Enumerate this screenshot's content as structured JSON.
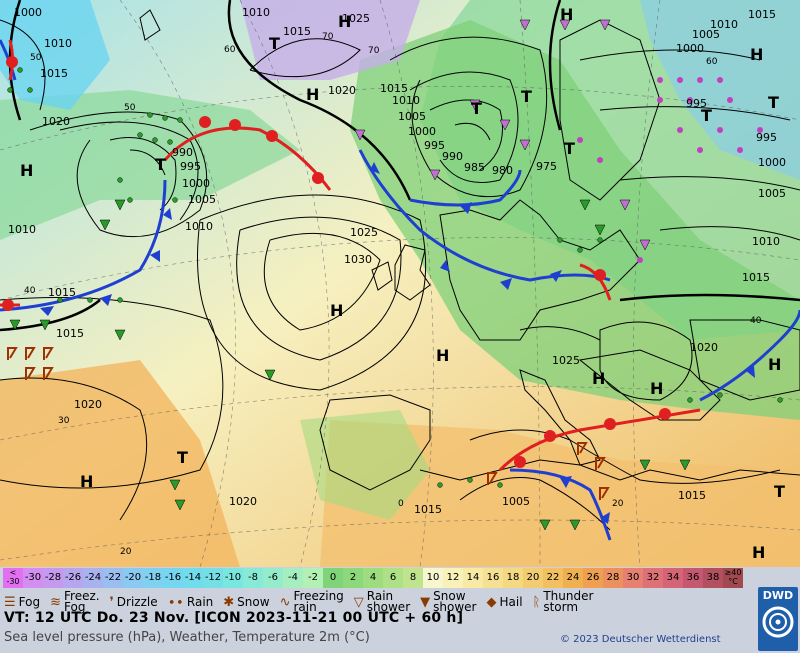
{
  "map": {
    "pressure_labels": [
      "1000",
      "1010",
      "1015",
      "1010",
      "1025",
      "1010",
      "1005",
      "1000",
      "995",
      "1015",
      "1010",
      "1005",
      "1000",
      "995",
      "990",
      "985",
      "980",
      "975",
      "1020",
      "1020",
      "1010",
      "1015",
      "1015",
      "1025",
      "1030",
      "1025",
      "1005",
      "1000",
      "995",
      "990",
      "1010",
      "1020",
      "1015",
      "1020",
      "1015",
      "1015",
      "1010",
      "1005",
      "1015",
      "1020",
      "1015",
      "1005",
      "995",
      "1000"
    ],
    "temp_labels": [
      "60",
      "70",
      "70",
      "60",
      "50",
      "40",
      "30",
      "20",
      "0",
      "20",
      "40",
      "50"
    ],
    "highs_lows": {
      "H": [
        "H",
        "H",
        "H",
        "H",
        "H",
        "H",
        "H",
        "H",
        "H",
        "H",
        "H",
        "H"
      ],
      "T": [
        "T",
        "T",
        "T",
        "T",
        "T",
        "T",
        "T",
        "T",
        "T"
      ]
    },
    "colors": {
      "ocean_cold": "#a6e0ea",
      "land_green": "#7fd07a",
      "warm": "#f2c070",
      "hot": "#f0a050",
      "front_cold": "#1f3fd0",
      "front_warm": "#e02020",
      "pressure_line": "#000000",
      "magenta": "#e070e0"
    }
  },
  "legend": {
    "scale": [
      {
        "label": "<\n-30",
        "color": "#e070f0"
      },
      {
        "label": "-30",
        "color": "#d38ef0"
      },
      {
        "label": "-28",
        "color": "#c59aee"
      },
      {
        "label": "-26",
        "color": "#b6a6ee"
      },
      {
        "label": "-24",
        "color": "#a8b2ee"
      },
      {
        "label": "-22",
        "color": "#9abef0"
      },
      {
        "label": "-20",
        "color": "#8acaf0"
      },
      {
        "label": "-18",
        "color": "#80d0f0"
      },
      {
        "label": "-16",
        "color": "#76d6f0"
      },
      {
        "label": "-14",
        "color": "#70dcec"
      },
      {
        "label": "-12",
        "color": "#74e0e6"
      },
      {
        "label": "-10",
        "color": "#7ae6e0"
      },
      {
        "label": "-8",
        "color": "#86ead6"
      },
      {
        "label": "-6",
        "color": "#94ecca"
      },
      {
        "label": "-4",
        "color": "#a4eebf"
      },
      {
        "label": "-2",
        "color": "#b2f0b6"
      },
      {
        "label": "0",
        "color": "#7fd47a"
      },
      {
        "label": "2",
        "color": "#8ed87c"
      },
      {
        "label": "4",
        "color": "#9edc80"
      },
      {
        "label": "6",
        "color": "#aee086"
      },
      {
        "label": "8",
        "color": "#c0e48e"
      },
      {
        "label": "10",
        "color": "#f6f6d0"
      },
      {
        "label": "12",
        "color": "#f8f2b8"
      },
      {
        "label": "14",
        "color": "#f8eaa4"
      },
      {
        "label": "16",
        "color": "#f6e092"
      },
      {
        "label": "18",
        "color": "#f4d882"
      },
      {
        "label": "20",
        "color": "#f2cc70"
      },
      {
        "label": "22",
        "color": "#f2c060"
      },
      {
        "label": "24",
        "color": "#f0b050"
      },
      {
        "label": "26",
        "color": "#eea050"
      },
      {
        "label": "28",
        "color": "#ec9060"
      },
      {
        "label": "30",
        "color": "#e68070"
      },
      {
        "label": "32",
        "color": "#de7078"
      },
      {
        "label": "34",
        "color": "#d46476"
      },
      {
        "label": "36",
        "color": "#c45870"
      },
      {
        "label": "38",
        "color": "#b25060"
      },
      {
        "label": "≥40\n°C",
        "color": "#a04a50"
      }
    ],
    "weather": [
      {
        "icon": "fog-icon",
        "label": "Fog"
      },
      {
        "icon": "freezing-fog-icon",
        "label": "Freez.\nFog"
      },
      {
        "icon": "drizzle-icon",
        "label": "Drizzle"
      },
      {
        "icon": "rain-icon",
        "label": "Rain"
      },
      {
        "icon": "snow-icon",
        "label": "Snow"
      },
      {
        "icon": "freezing-rain-icon",
        "label": "Freezing\nrain"
      },
      {
        "icon": "rain-shower-icon",
        "label": "Rain\nshower"
      },
      {
        "icon": "snow-shower-icon",
        "label": "Snow\nshower"
      },
      {
        "icon": "hail-icon",
        "label": "Hail"
      },
      {
        "icon": "thunderstorm-icon",
        "label": "Thunder\nstorm"
      }
    ],
    "valid_time": "VT: 12 UTC Do.  23 Nov. [ICON 2023-11-21  00 UTC + 60 h]",
    "subtitle": "Sea level pressure (hPa), Weather, Temperature 2m (°C)",
    "copyright": "© 2023 Deutscher Wetterdienst",
    "brand": "DWD"
  }
}
